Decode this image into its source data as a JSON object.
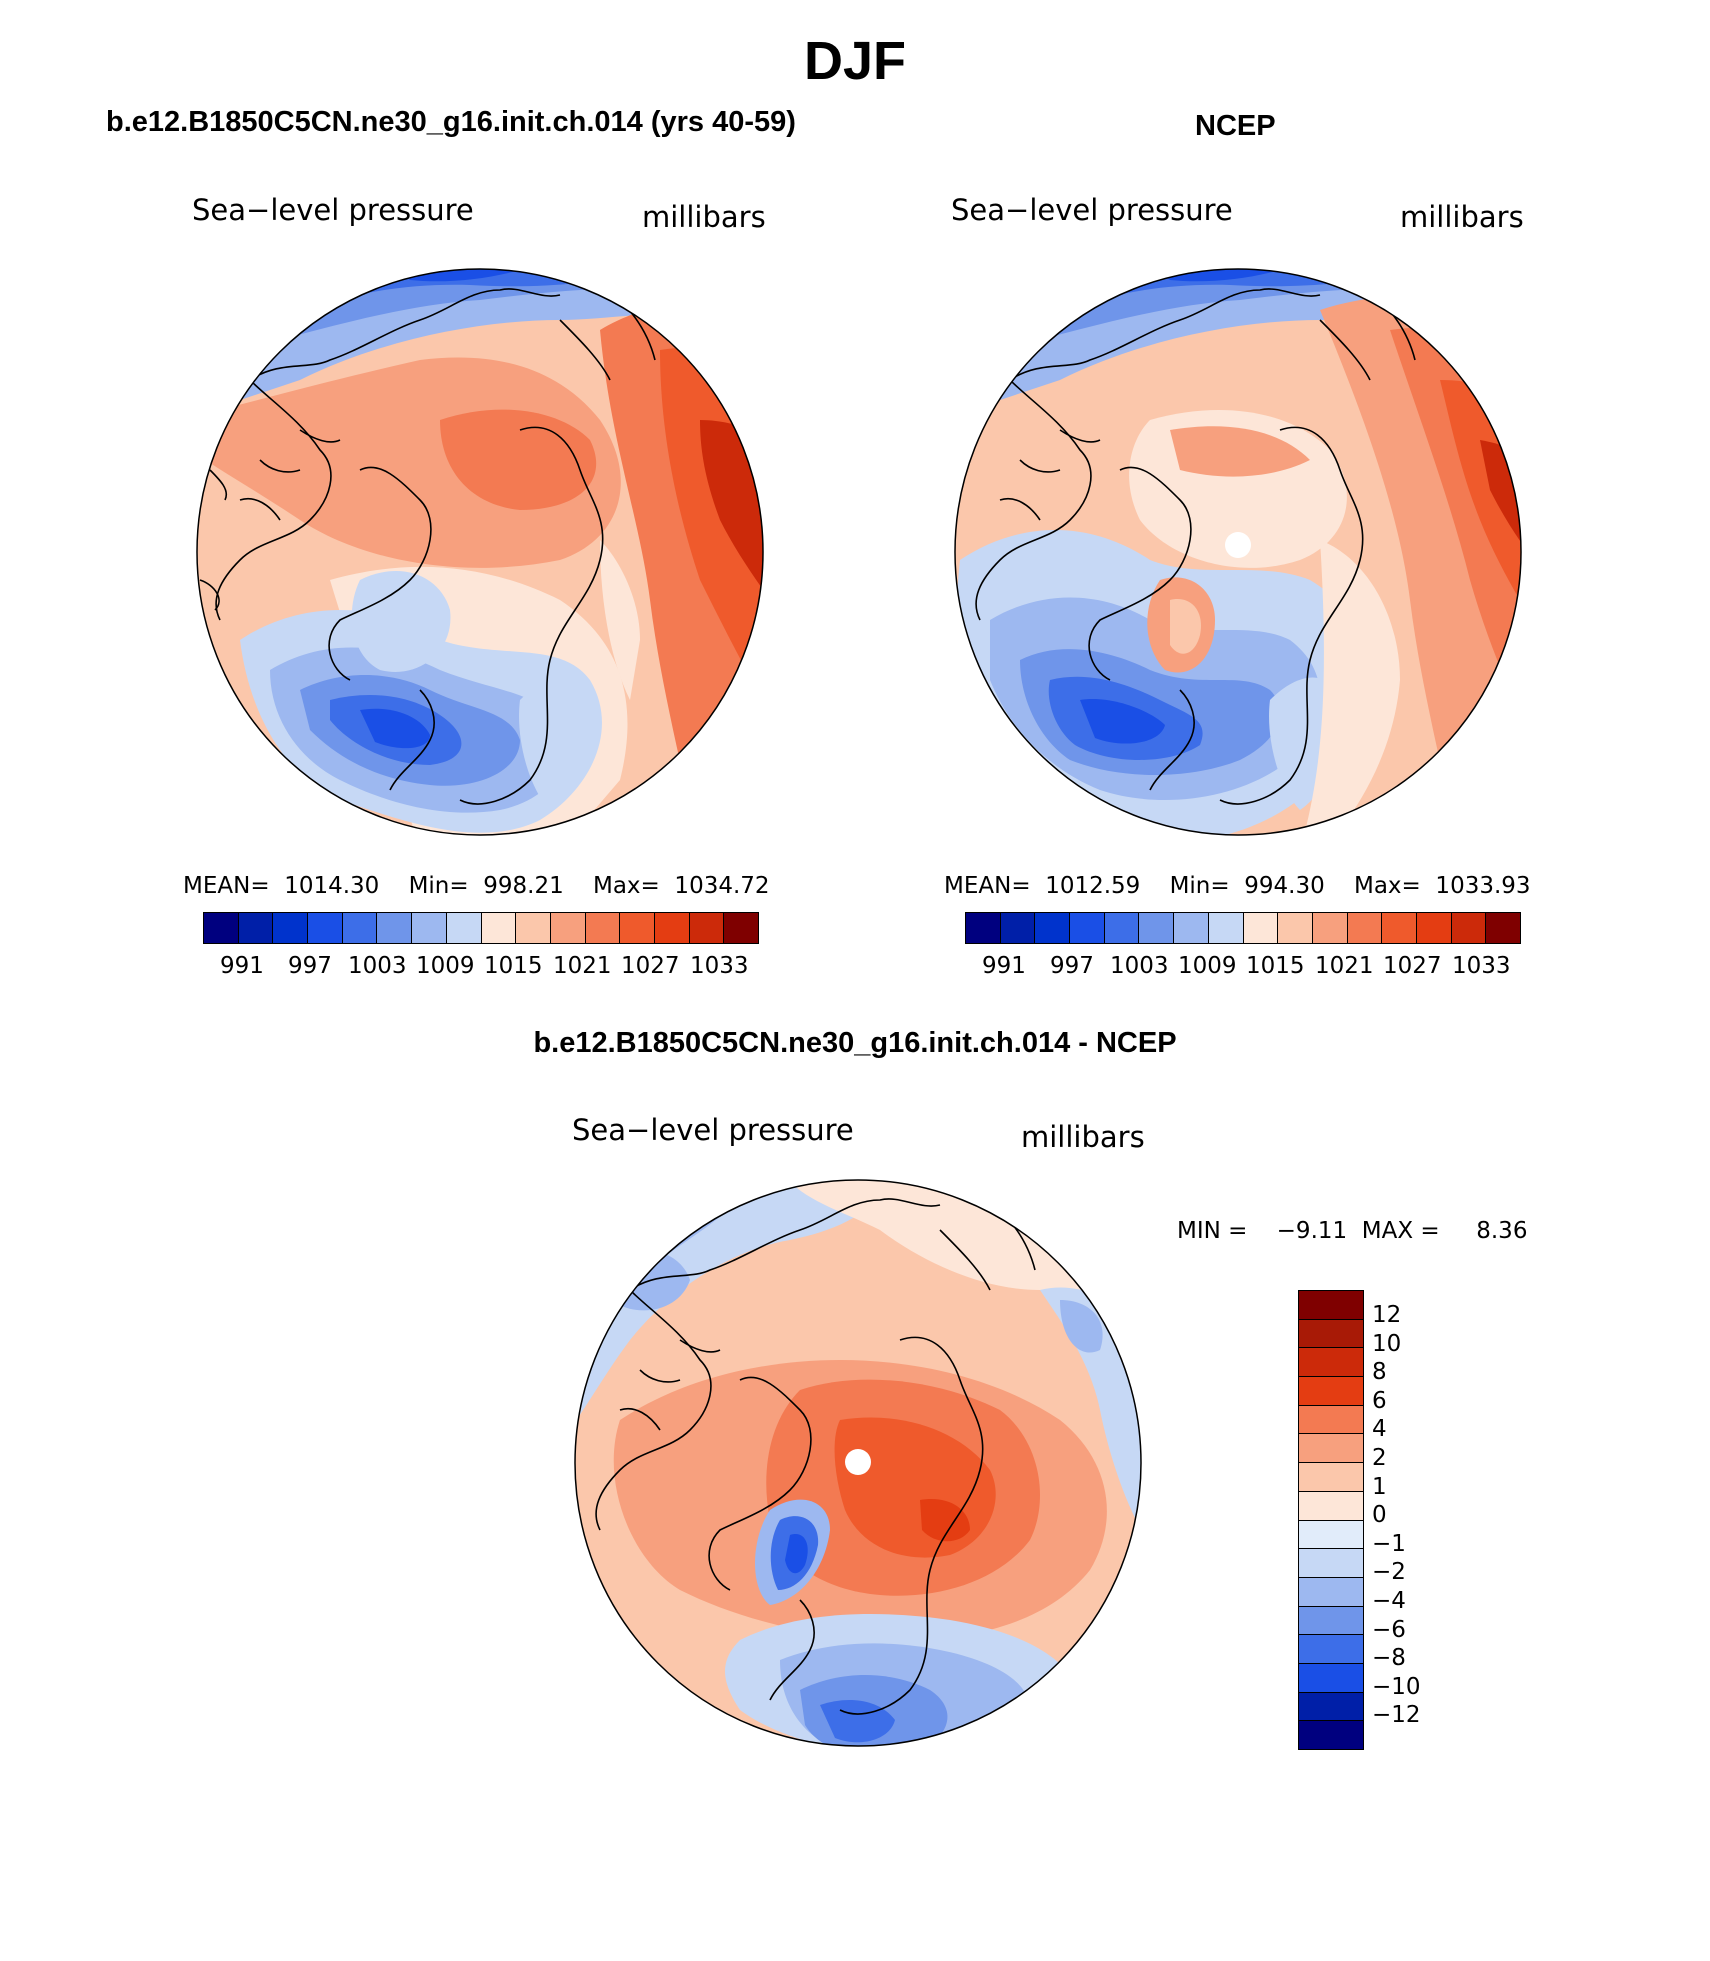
{
  "main_title": "DJF",
  "palette": {
    "blues": [
      "#00007f",
      "#001fa8",
      "#0033cc",
      "#1a4fe6",
      "#3d6ee8",
      "#6f95ea",
      "#9db8f0",
      "#c6d8f5",
      "#e1ecfa"
    ],
    "reds": [
      "#fde6d8",
      "#fbc7ab",
      "#f7a07e",
      "#f37a52",
      "#ef5a2c",
      "#e43d12",
      "#cc2a0a",
      "#a81a06",
      "#7f0000"
    ],
    "land_outline": "#000000"
  },
  "panels": [
    {
      "heading": "b.e12.B1850C5CN.ne30_g16.init.ch.014 (yrs 40-59)",
      "left_label": "Sea−level pressure",
      "right_label": "millibars",
      "stats": "MEAN=  1014.30    Min=  998.21    Max=  1034.72",
      "colorbar_labels": [
        "991",
        "997",
        "1003",
        "1009",
        "1015",
        "1021",
        "1027",
        "1033"
      ]
    },
    {
      "heading": "NCEP",
      "left_label": "Sea−level pressure",
      "right_label": "millibars",
      "stats": "MEAN=  1012.59    Min=  994.30    Max=  1033.93",
      "colorbar_labels": [
        "991",
        "997",
        "1003",
        "1009",
        "1015",
        "1021",
        "1027",
        "1033"
      ]
    },
    {
      "heading": "b.e12.B1850C5CN.ne30_g16.init.ch.014 - NCEP",
      "left_label": "Sea−level pressure",
      "right_label": "millibars",
      "stats": "MIN =    −9.11  MAX =     8.36",
      "colorbar_labels": [
        "12",
        "10",
        "8",
        "6",
        "4",
        "2",
        "1",
        "0",
        "−1",
        "−2",
        "−4",
        "−6",
        "−8",
        "−10",
        "−12"
      ]
    }
  ]
}
